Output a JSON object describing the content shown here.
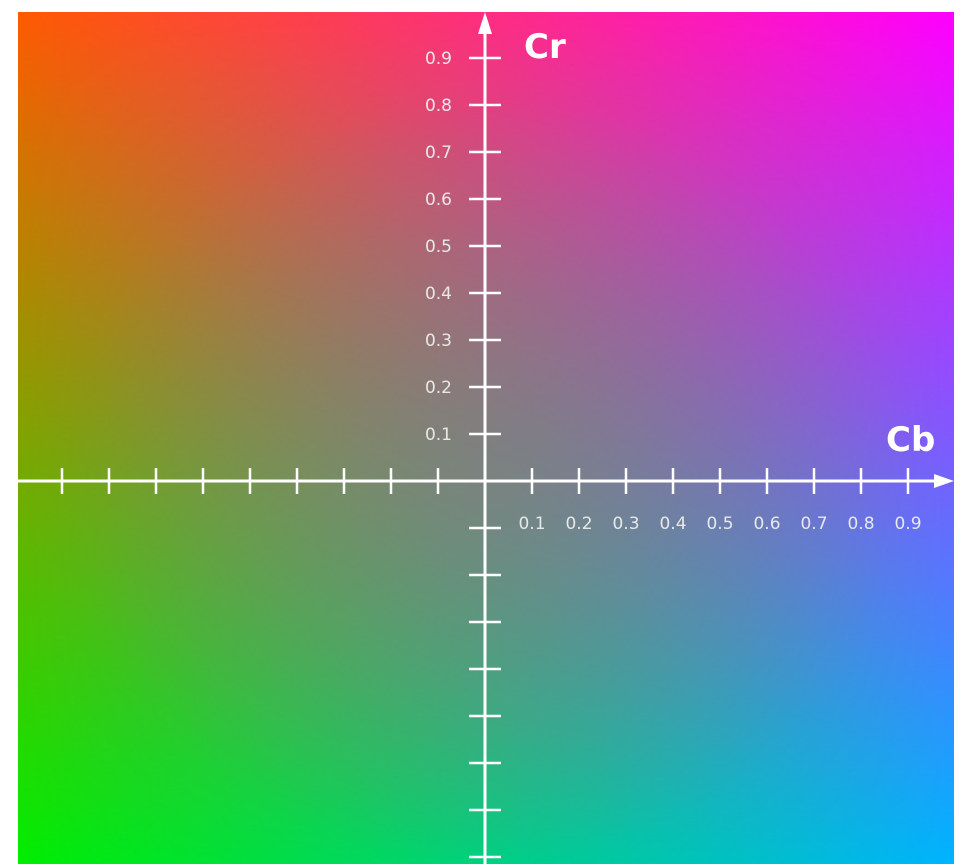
{
  "diagram": {
    "title": "",
    "x_axis": {
      "label": "Cb",
      "tick_labels": [
        "0.1",
        "0.2",
        "0.3",
        "0.4",
        "0.5",
        "0.6",
        "0.7",
        "0.8",
        "0.9"
      ]
    },
    "y_axis": {
      "label": "Cr",
      "tick_labels": [
        "0.1",
        "0.2",
        "0.3",
        "0.4",
        "0.5",
        "0.6",
        "0.7",
        "0.8",
        "0.9"
      ]
    },
    "corner_colors": {
      "top_left": "#ff5a00",
      "top_right": "#ff00ff",
      "bottom_left": "#00ee00",
      "bottom_right": "#00b4ff",
      "center": "#808080"
    }
  }
}
